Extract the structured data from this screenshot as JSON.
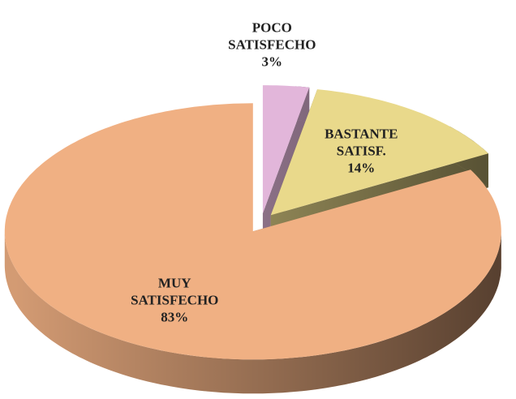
{
  "chart_data": {
    "type": "pie",
    "categories": [
      "POCO SATISFECHO",
      "BASTANTE SATISF.",
      "MUY SATISFECHO"
    ],
    "values": [
      3,
      14,
      83
    ],
    "value_labels": [
      "3%",
      "14%",
      "83%"
    ],
    "colors": [
      "#e2b6da",
      "#e9d98b",
      "#f0b083"
    ]
  }
}
